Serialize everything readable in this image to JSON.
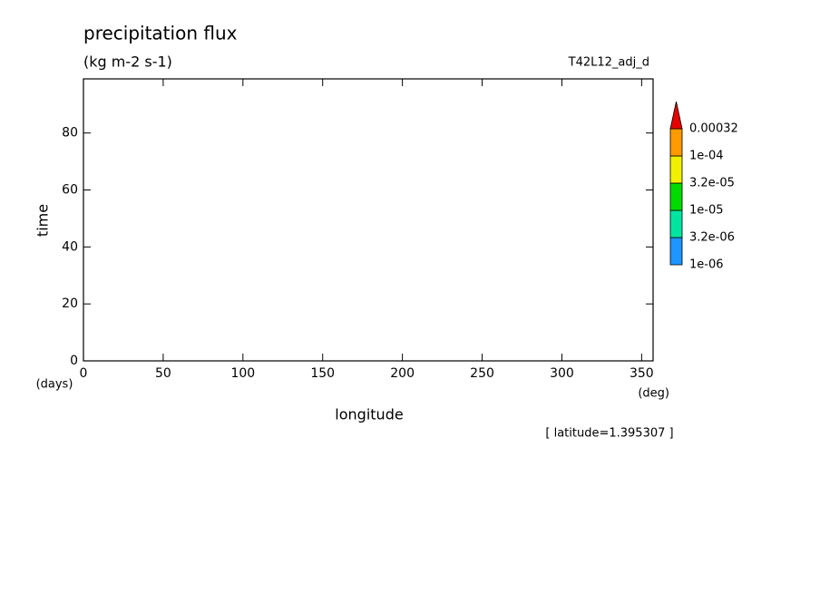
{
  "chart_data": {
    "type": "contour",
    "title": "precipitation flux",
    "subtitle": "(kg m-2 s-1)",
    "experiment": "T42L12_adj_d",
    "x_label": "longitude",
    "x_unit": "(deg)",
    "y_label": "time",
    "y_unit": "(days)",
    "annotation": "[ latitude=1.395307 ]",
    "xlim": [
      0,
      357.1875
    ],
    "xticks": [
      0,
      50,
      100,
      150,
      200,
      250,
      300,
      350
    ],
    "ylim": [
      0,
      99
    ],
    "yticks": [
      0,
      20,
      40,
      60,
      80
    ],
    "colorbar": {
      "ticks": [
        {
          "value": 1e-06,
          "label": "1e-06"
        },
        {
          "value": 3.2e-06,
          "label": "3.2e-06"
        },
        {
          "value": 1e-05,
          "label": "1e-05"
        },
        {
          "value": 3.2e-05,
          "label": "3.2e-05"
        },
        {
          "value": 0.0001,
          "label": "1e-04"
        },
        0.00032
      ],
      "colors": [
        "#1e96ff",
        "#00e6a0",
        "#00dc00",
        "#f0f000",
        "#ff9a00",
        "#e60000"
      ],
      "extend": "max"
    }
  }
}
